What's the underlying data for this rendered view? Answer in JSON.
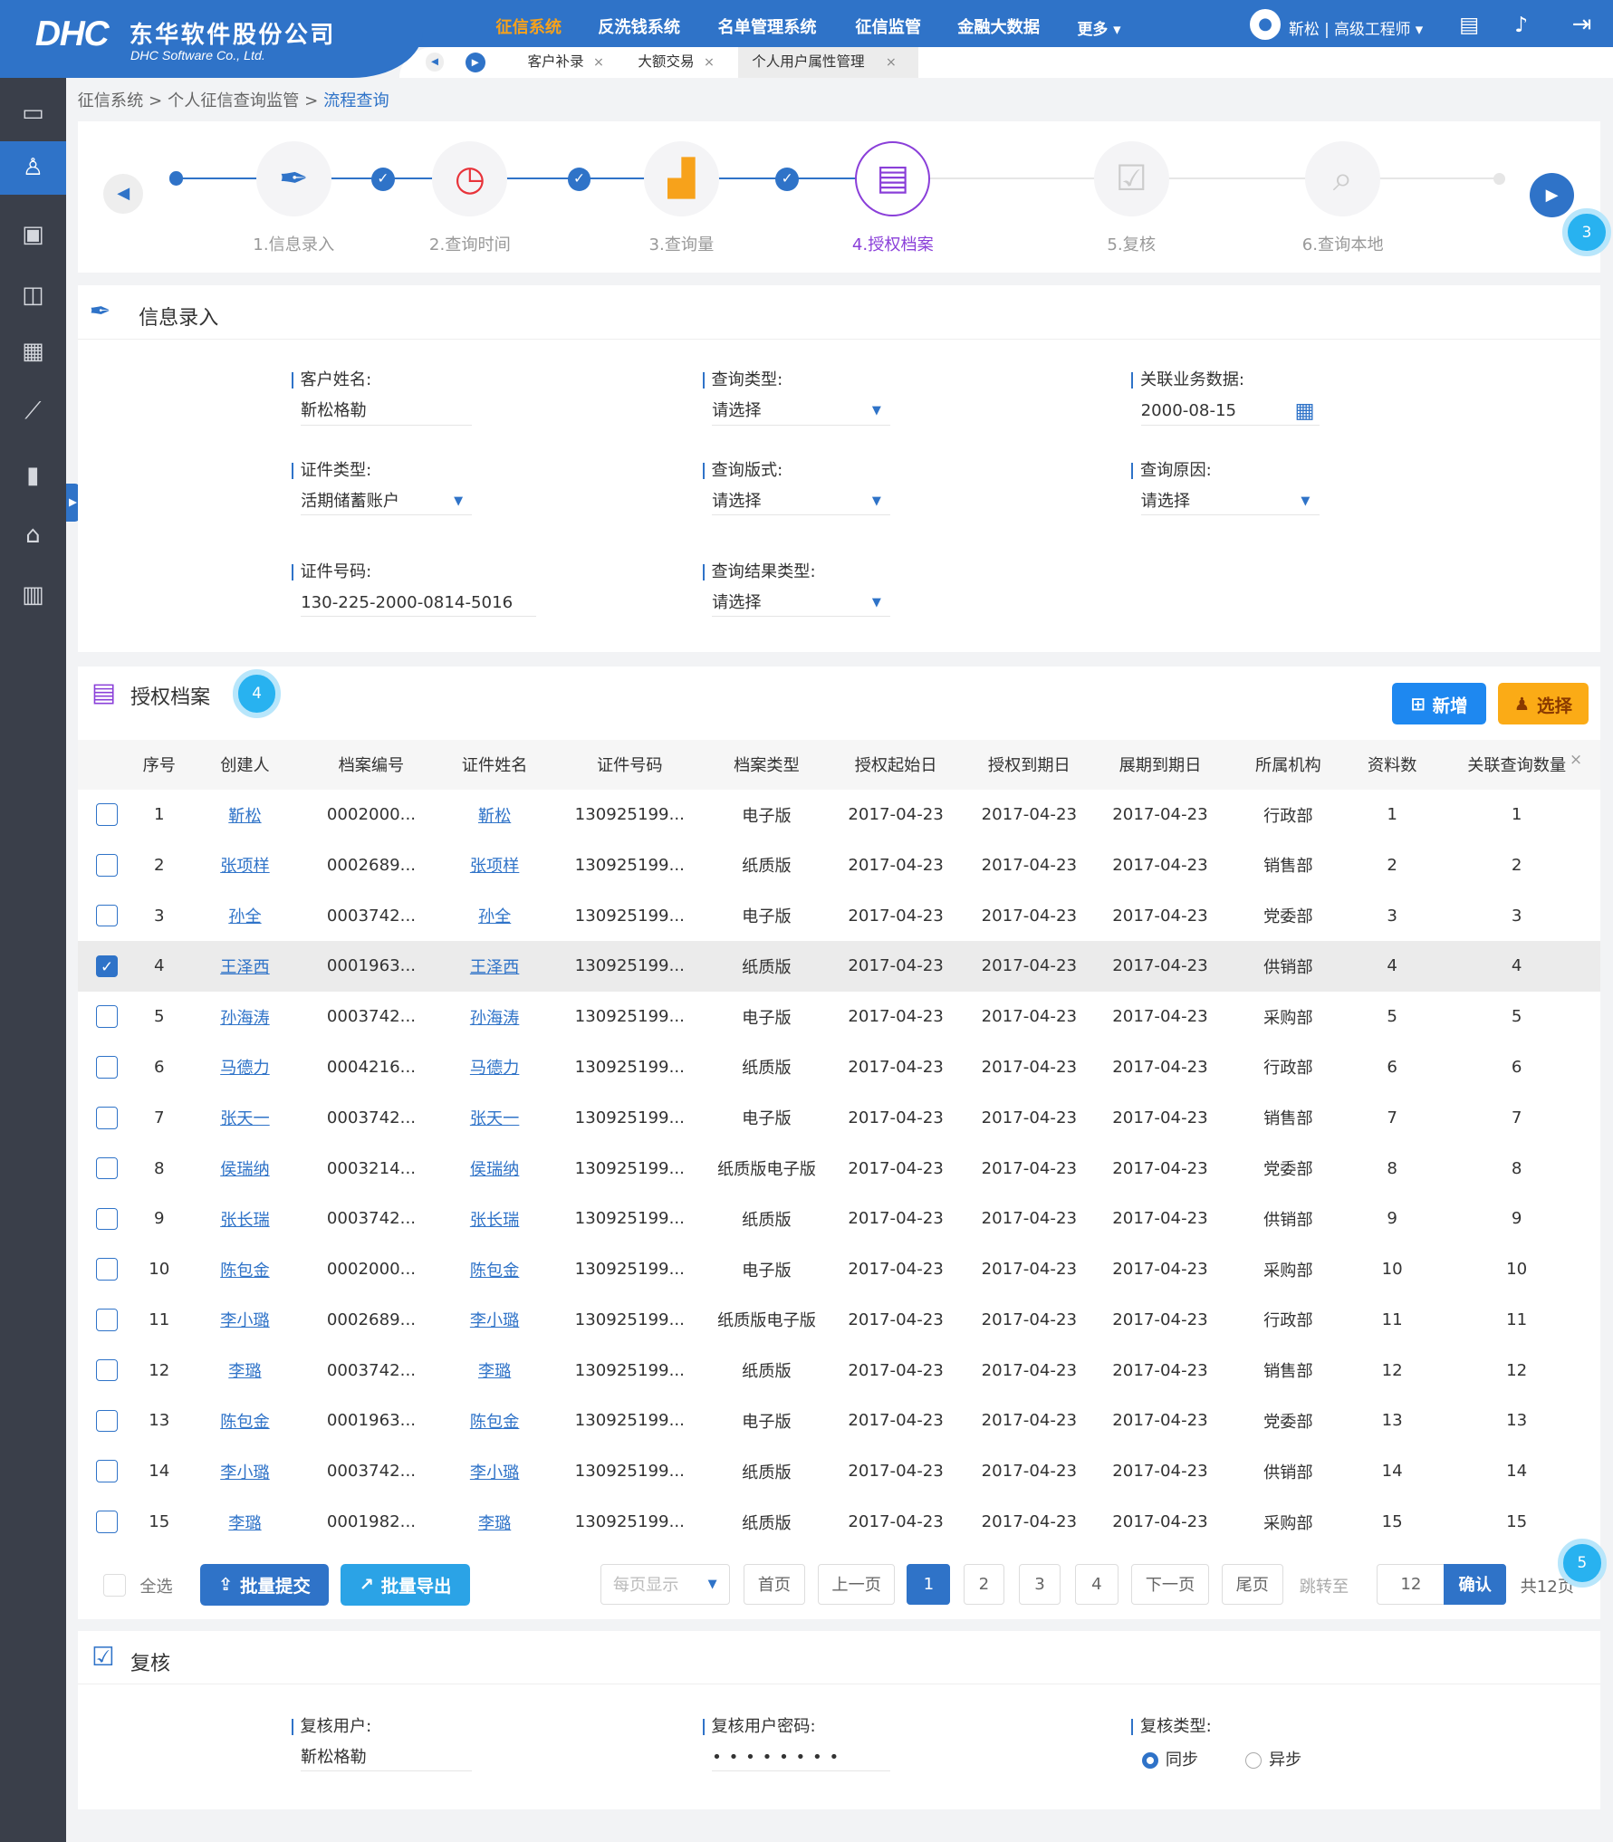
{
  "header": {
    "logo_mark": "DHC",
    "company_cn": "东华软件股份公司",
    "company_en": "DHC Software Co., Ltd.",
    "nav": [
      "征信系统",
      "反洗钱系统",
      "名单管理系统",
      "征信监管",
      "金融大数据",
      "更多 ▾"
    ],
    "active_nav": 0,
    "user": "靳松 | 高级工程师 ▾",
    "colors": {
      "primary": "#2f73c8",
      "accent": "#f7a21b",
      "sidebar": "#3a3f4a"
    }
  },
  "tabs": [
    {
      "label": "客户补录"
    },
    {
      "label": "大额交易"
    },
    {
      "label": "个人用户属性管理",
      "active": true
    }
  ],
  "breadcrumb": {
    "items": [
      "征信系统",
      "个人征信查询监管"
    ],
    "sep": ">",
    "current": "流程查询"
  },
  "sidebar": {
    "icons": [
      "monitor-icon",
      "user-icon",
      "archive-icon",
      "briefcase-icon",
      "grid-icon",
      "chart-icon",
      "book-icon",
      "bank-icon",
      "library-icon"
    ],
    "active": 1
  },
  "stepper": {
    "steps": [
      {
        "label": "1.信息录入",
        "icon": "✒",
        "color": "#2f73c8"
      },
      {
        "label": "2.查询时间",
        "icon": "◷",
        "color": "#e8333a"
      },
      {
        "label": "3.查询量",
        "icon": "▟",
        "color": "#f7a21b"
      },
      {
        "label": "4.授权档案",
        "icon": "▤",
        "color": "#8a3fd9"
      },
      {
        "label": "5.复核",
        "icon": "☑",
        "color": "#ccc"
      },
      {
        "label": "6.查询本地",
        "icon": "⌕",
        "color": "#ccc"
      }
    ],
    "current": 4,
    "badge": "3"
  },
  "info": {
    "title": "信息录入",
    "fields": [
      {
        "label": "客户姓名:",
        "value": "靳松格勒"
      },
      {
        "label": "查询类型:",
        "value": "请选择"
      },
      {
        "label": "关联业务数据:",
        "value": "2000-08-15"
      },
      {
        "label": "证件类型:",
        "value": "活期储蓄账户"
      },
      {
        "label": "查询版式:",
        "value": "请选择"
      },
      {
        "label": "查询原因:",
        "value": "请选择"
      },
      {
        "label": "证件号码:",
        "value": "130-225-2000-0814-5016"
      },
      {
        "label": "查询结果类型:",
        "value": "请选择"
      }
    ]
  },
  "archive": {
    "title": "授权档案",
    "badge": "4",
    "add_label": "新增",
    "select_label": "选择",
    "columns": [
      "",
      "序号",
      "创建人",
      "档案编号",
      "证件姓名",
      "证件号码",
      "档案类型",
      "授权起始日",
      "授权到期日",
      "展期到期日",
      "所属机构",
      "资料数",
      "关联查询数量"
    ],
    "rows": [
      [
        "1",
        "靳松",
        "0002000...",
        "靳松",
        "130925199...",
        "电子版",
        "2017-04-23",
        "2017-04-23",
        "2017-04-23",
        "行政部",
        "1",
        "1"
      ],
      [
        "2",
        "张项样",
        "0002689...",
        "张项样",
        "130925199...",
        "纸质版",
        "2017-04-23",
        "2017-04-23",
        "2017-04-23",
        "销售部",
        "2",
        "2"
      ],
      [
        "3",
        "孙全",
        "0003742...",
        "孙全",
        "130925199...",
        "电子版",
        "2017-04-23",
        "2017-04-23",
        "2017-04-23",
        "党委部",
        "3",
        "3"
      ],
      [
        "4",
        "王泽西",
        "0001963...",
        "王泽西",
        "130925199...",
        "纸质版",
        "2017-04-23",
        "2017-04-23",
        "2017-04-23",
        "供销部",
        "4",
        "4"
      ],
      [
        "5",
        "孙海涛",
        "0003742...",
        "孙海涛",
        "130925199...",
        "电子版",
        "2017-04-23",
        "2017-04-23",
        "2017-04-23",
        "采购部",
        "5",
        "5"
      ],
      [
        "6",
        "马德力",
        "0004216...",
        "马德力",
        "130925199...",
        "纸质版",
        "2017-04-23",
        "2017-04-23",
        "2017-04-23",
        "行政部",
        "6",
        "6"
      ],
      [
        "7",
        "张天一",
        "0003742...",
        "张天一",
        "130925199...",
        "电子版",
        "2017-04-23",
        "2017-04-23",
        "2017-04-23",
        "销售部",
        "7",
        "7"
      ],
      [
        "8",
        "侯瑞纳",
        "0003214...",
        "侯瑞纳",
        "130925199...",
        "纸质版电子版",
        "2017-04-23",
        "2017-04-23",
        "2017-04-23",
        "党委部",
        "8",
        "8"
      ],
      [
        "9",
        "张长瑞",
        "0003742...",
        "张长瑞",
        "130925199...",
        "纸质版",
        "2017-04-23",
        "2017-04-23",
        "2017-04-23",
        "供销部",
        "9",
        "9"
      ],
      [
        "10",
        "陈包金",
        "0002000...",
        "陈包金",
        "130925199...",
        "电子版",
        "2017-04-23",
        "2017-04-23",
        "2017-04-23",
        "采购部",
        "10",
        "10"
      ],
      [
        "11",
        "李小璐",
        "0002689...",
        "李小璐",
        "130925199...",
        "纸质版电子版",
        "2017-04-23",
        "2017-04-23",
        "2017-04-23",
        "行政部",
        "11",
        "11"
      ],
      [
        "12",
        "李璐",
        "0003742...",
        "李璐",
        "130925199...",
        "纸质版",
        "2017-04-23",
        "2017-04-23",
        "2017-04-23",
        "销售部",
        "12",
        "12"
      ],
      [
        "13",
        "陈包金",
        "0001963...",
        "陈包金",
        "130925199...",
        "电子版",
        "2017-04-23",
        "2017-04-23",
        "2017-04-23",
        "党委部",
        "13",
        "13"
      ],
      [
        "14",
        "李小璐",
        "0003742...",
        "李小璐",
        "130925199...",
        "纸质版",
        "2017-04-23",
        "2017-04-23",
        "2017-04-23",
        "供销部",
        "14",
        "14"
      ],
      [
        "15",
        "李璐",
        "0001982...",
        "李璐",
        "130925199...",
        "纸质版",
        "2017-04-23",
        "2017-04-23",
        "2017-04-23",
        "采购部",
        "15",
        "15"
      ]
    ],
    "checked_row": 4,
    "footer": {
      "select_all": "全选",
      "batch_submit": "批量提交",
      "batch_export": "批量导出",
      "per_page": "每页显示",
      "first": "首页",
      "prev": "上一页",
      "pages": [
        "1",
        "2",
        "3",
        "4"
      ],
      "current_page": "1",
      "next": "下一页",
      "last": "尾页",
      "jump": "跳转至",
      "jump_value": "12",
      "confirm": "确认",
      "total": "共12页",
      "badge": "5"
    }
  },
  "review": {
    "title": "复核",
    "user_label": "复核用户:",
    "user_value": "靳松格勒",
    "pwd_label": "复核用户密码:",
    "pwd_value": "••••••••",
    "type_label": "复核类型:",
    "options": [
      "同步",
      "异步"
    ],
    "selected": 0
  }
}
